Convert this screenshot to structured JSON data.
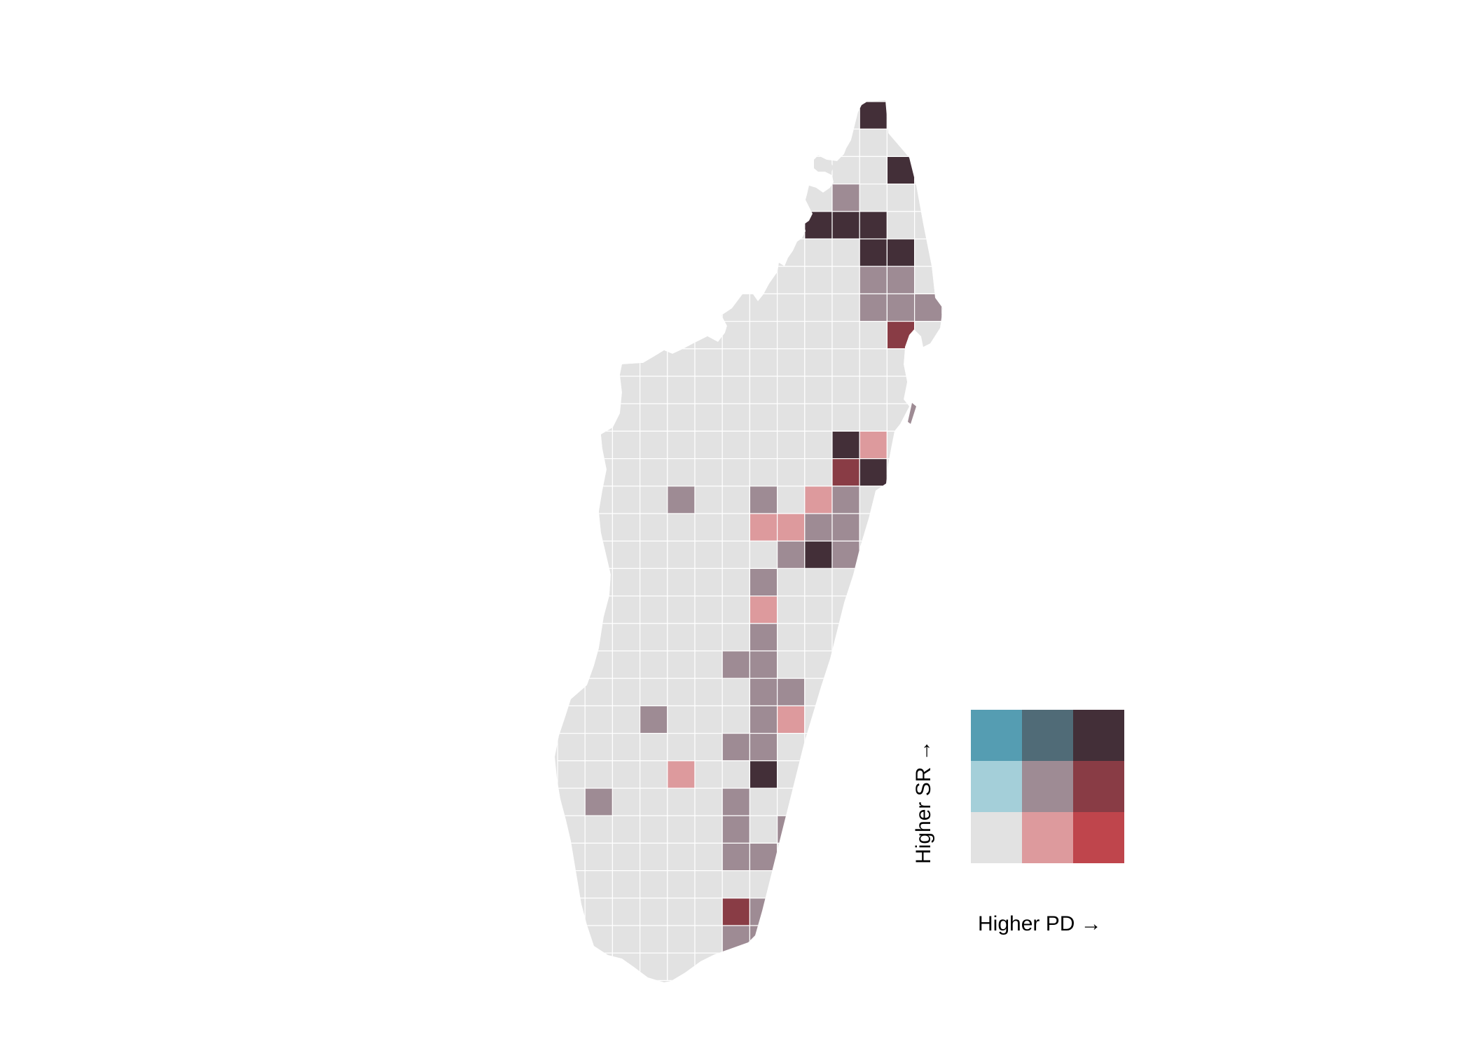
{
  "legend": {
    "x_label": "Higher PD",
    "y_label": "Higher SR",
    "arrow": "→",
    "palette": [
      [
        "#e2e2e2",
        "#dd9a9d",
        "#bf454c"
      ],
      [
        "#a4cfd9",
        "#9e8b94",
        "#893c45"
      ],
      [
        "#559db2",
        "#506b77",
        "#432f38"
      ]
    ]
  },
  "map_cells": {
    "classes": {
      "base": "#e2e2e2",
      "mid": "#9e8b94",
      "dark": "#432f38",
      "pink": "#dd9a9d",
      "red": "#893c45"
    },
    "highlighted": [
      {
        "col": 11,
        "row": 0,
        "cls": "dark"
      },
      {
        "col": 12,
        "row": 2,
        "cls": "dark"
      },
      {
        "col": 10,
        "row": 3,
        "cls": "mid"
      },
      {
        "col": 9,
        "row": 4,
        "cls": "dark"
      },
      {
        "col": 10,
        "row": 4,
        "cls": "dark"
      },
      {
        "col": 11,
        "row": 4,
        "cls": "dark"
      },
      {
        "col": 11,
        "row": 5,
        "cls": "dark"
      },
      {
        "col": 12,
        "row": 5,
        "cls": "dark"
      },
      {
        "col": 11,
        "row": 6,
        "cls": "mid"
      },
      {
        "col": 12,
        "row": 6,
        "cls": "mid"
      },
      {
        "col": 11,
        "row": 7,
        "cls": "mid"
      },
      {
        "col": 12,
        "row": 7,
        "cls": "mid"
      },
      {
        "col": 13,
        "row": 7,
        "cls": "mid"
      },
      {
        "col": 12,
        "row": 8,
        "cls": "red"
      },
      {
        "col": 10,
        "row": 12,
        "cls": "dark"
      },
      {
        "col": 11,
        "row": 12,
        "cls": "pink"
      },
      {
        "col": 10,
        "row": 13,
        "cls": "red"
      },
      {
        "col": 11,
        "row": 13,
        "cls": "dark"
      },
      {
        "col": 4,
        "row": 14,
        "cls": "mid"
      },
      {
        "col": 7,
        "row": 14,
        "cls": "mid"
      },
      {
        "col": 9,
        "row": 14,
        "cls": "pink"
      },
      {
        "col": 10,
        "row": 14,
        "cls": "mid"
      },
      {
        "col": 7,
        "row": 15,
        "cls": "pink"
      },
      {
        "col": 8,
        "row": 15,
        "cls": "pink"
      },
      {
        "col": 9,
        "row": 15,
        "cls": "mid"
      },
      {
        "col": 10,
        "row": 15,
        "cls": "mid"
      },
      {
        "col": 8,
        "row": 16,
        "cls": "mid"
      },
      {
        "col": 9,
        "row": 16,
        "cls": "dark"
      },
      {
        "col": 10,
        "row": 16,
        "cls": "mid"
      },
      {
        "col": 7,
        "row": 17,
        "cls": "mid"
      },
      {
        "col": 7,
        "row": 18,
        "cls": "pink"
      },
      {
        "col": 7,
        "row": 19,
        "cls": "mid"
      },
      {
        "col": 6,
        "row": 20,
        "cls": "mid"
      },
      {
        "col": 7,
        "row": 20,
        "cls": "mid"
      },
      {
        "col": 7,
        "row": 21,
        "cls": "mid"
      },
      {
        "col": 8,
        "row": 21,
        "cls": "mid"
      },
      {
        "col": 3,
        "row": 22,
        "cls": "mid"
      },
      {
        "col": 7,
        "row": 22,
        "cls": "mid"
      },
      {
        "col": 8,
        "row": 22,
        "cls": "pink"
      },
      {
        "col": 6,
        "row": 23,
        "cls": "mid"
      },
      {
        "col": 7,
        "row": 23,
        "cls": "mid"
      },
      {
        "col": 4,
        "row": 24,
        "cls": "pink"
      },
      {
        "col": 7,
        "row": 24,
        "cls": "dark"
      },
      {
        "col": 1,
        "row": 25,
        "cls": "mid"
      },
      {
        "col": 6,
        "row": 25,
        "cls": "mid"
      },
      {
        "col": 6,
        "row": 26,
        "cls": "mid"
      },
      {
        "col": 8,
        "row": 26,
        "cls": "mid"
      },
      {
        "col": 6,
        "row": 27,
        "cls": "mid"
      },
      {
        "col": 7,
        "row": 27,
        "cls": "mid"
      },
      {
        "col": 6,
        "row": 29,
        "cls": "red"
      },
      {
        "col": 7,
        "row": 29,
        "cls": "mid"
      },
      {
        "col": 6,
        "row": 30,
        "cls": "mid"
      },
      {
        "col": 7,
        "row": 30,
        "cls": "mid"
      }
    ]
  }
}
